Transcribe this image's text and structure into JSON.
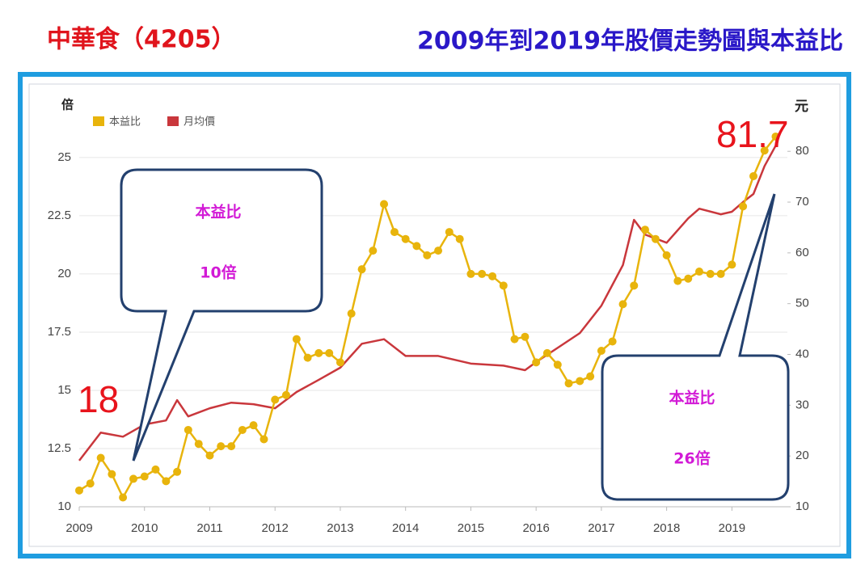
{
  "chart_data": {
    "type": "line",
    "title": "2009年到2019年股價走勢圖與本益比",
    "stock_title": "中華食（4205）",
    "y_label": "倍",
    "y2_label": "元",
    "annotations": {
      "start_pe": "18",
      "end_price": "81.7",
      "callout_left": [
        "本益比",
        "10倍"
      ],
      "callout_right": [
        "本益比",
        "26倍"
      ]
    },
    "xlim": [
      2009,
      2019.85
    ],
    "xticks": [
      2009,
      2010,
      2011,
      2012,
      2013,
      2014,
      2015,
      2016,
      2017,
      2018,
      2019
    ],
    "ylim": [
      10,
      27.6
    ],
    "yticks": [
      10,
      12.5,
      15,
      17.5,
      20,
      22.5,
      25
    ],
    "y2lim": [
      10,
      90.7
    ],
    "y2ticks": [
      10,
      20,
      30,
      40,
      50,
      60,
      70,
      80
    ],
    "grid": true,
    "series": [
      {
        "name": "本益比",
        "color": "#e8b40c",
        "markers": true,
        "x": [
          2009.0,
          2009.17,
          2009.33,
          2009.5,
          2009.67,
          2009.83,
          2010.0,
          2010.17,
          2010.33,
          2010.5,
          2010.67,
          2010.83,
          2011.0,
          2011.17,
          2011.33,
          2011.5,
          2011.67,
          2011.83,
          2012.0,
          2012.17,
          2012.33,
          2012.5,
          2012.67,
          2012.83,
          2013.0,
          2013.17,
          2013.33,
          2013.5,
          2013.67,
          2013.83,
          2014.0,
          2014.17,
          2014.33,
          2014.5,
          2014.67,
          2014.83,
          2015.0,
          2015.17,
          2015.33,
          2015.5,
          2015.67,
          2015.83,
          2016.0,
          2016.17,
          2016.33,
          2016.5,
          2016.67,
          2016.83,
          2017.0,
          2017.17,
          2017.33,
          2017.5,
          2017.67,
          2017.83,
          2018.0,
          2018.17,
          2018.33,
          2018.5,
          2018.67,
          2018.83,
          2019.0,
          2019.17,
          2019.33,
          2019.5,
          2019.67
        ],
        "values": [
          10.7,
          11.0,
          12.1,
          11.4,
          10.4,
          11.2,
          11.3,
          11.6,
          11.1,
          11.5,
          13.3,
          12.7,
          12.2,
          12.6,
          12.6,
          13.3,
          13.5,
          12.9,
          14.6,
          14.8,
          17.2,
          16.4,
          16.6,
          16.6,
          16.2,
          18.3,
          20.2,
          21.0,
          23.0,
          21.8,
          21.5,
          21.2,
          20.8,
          21.0,
          21.8,
          21.5,
          20.0,
          20.0,
          19.9,
          19.5,
          17.2,
          17.3,
          16.2,
          16.6,
          16.1,
          15.3,
          15.4,
          15.6,
          16.7,
          17.1,
          18.7,
          19.5,
          21.9,
          21.5,
          20.8,
          19.7,
          19.8,
          20.1,
          20.0,
          20.0,
          20.4,
          22.9,
          24.2,
          25.3,
          25.9
        ]
      },
      {
        "name": "月均價",
        "color": "#c9373c",
        "axis": "y2",
        "markers": false,
        "x": [
          2009.0,
          2009.33,
          2009.67,
          2010.0,
          2010.33,
          2010.5,
          2010.67,
          2011.0,
          2011.33,
          2011.67,
          2012.0,
          2012.33,
          2012.67,
          2013.0,
          2013.33,
          2013.67,
          2014.0,
          2014.5,
          2015.0,
          2015.5,
          2015.83,
          2016.0,
          2016.33,
          2016.67,
          2017.0,
          2017.33,
          2017.5,
          2017.67,
          2018.0,
          2018.33,
          2018.5,
          2018.83,
          2019.0,
          2019.17,
          2019.33,
          2019.5,
          2019.67
        ],
        "values": [
          19.1,
          24.6,
          23.8,
          26.2,
          27.0,
          31.0,
          27.8,
          29.4,
          30.5,
          30.2,
          29.4,
          32.6,
          35.0,
          37.4,
          42.1,
          43.0,
          39.7,
          39.7,
          38.2,
          37.8,
          36.9,
          38.5,
          41.3,
          44.2,
          49.6,
          57.6,
          66.5,
          63.6,
          62.0,
          66.8,
          68.7,
          67.6,
          68.1,
          70.0,
          71.6,
          77.1,
          81.1
        ]
      }
    ]
  }
}
